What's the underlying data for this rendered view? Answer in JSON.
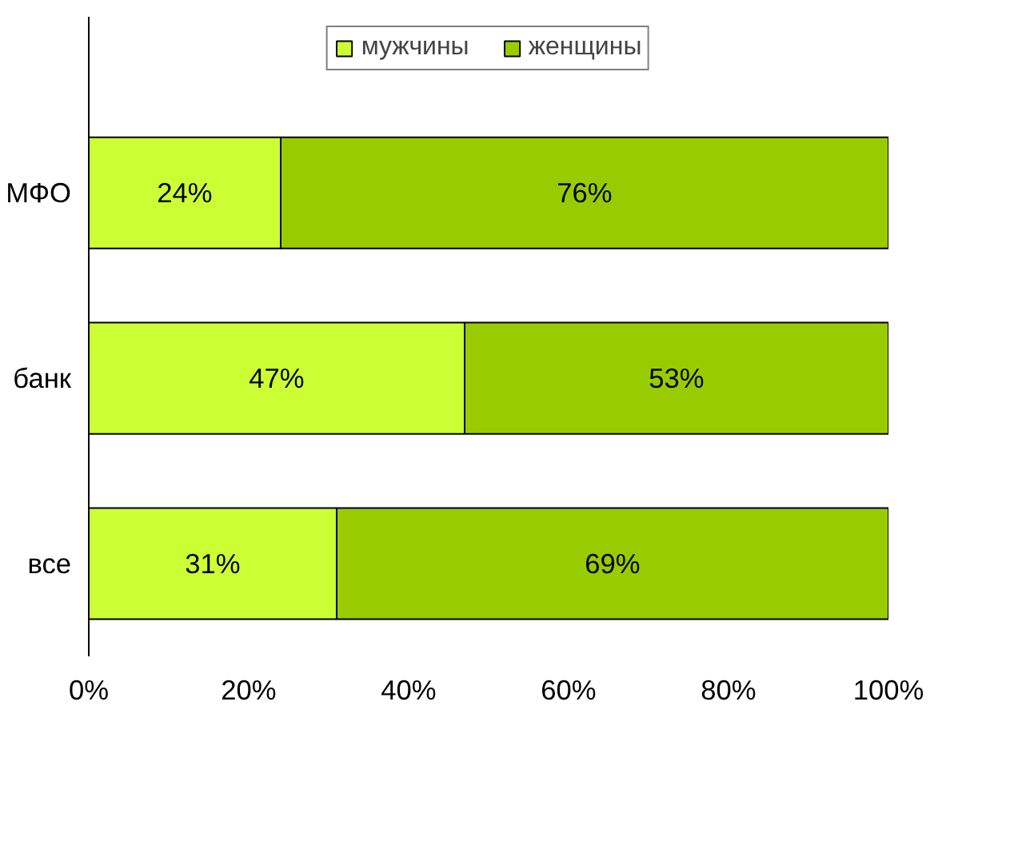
{
  "chart_data": {
    "type": "bar",
    "orientation": "horizontal",
    "stacked": true,
    "categories": [
      "МФО",
      "банк",
      "все"
    ],
    "series": [
      {
        "name": "мужчины",
        "color": "#ccff33",
        "values": [
          24,
          47,
          31
        ],
        "value_labels": [
          "24%",
          "47%",
          "31%"
        ]
      },
      {
        "name": "женщины",
        "color": "#99cc00",
        "values": [
          76,
          53,
          69
        ],
        "value_labels": [
          "76%",
          "53%",
          "69%"
        ]
      }
    ],
    "xlim": [
      0,
      100
    ],
    "xticks": [
      {
        "value": 0,
        "label": "0%"
      },
      {
        "value": 20,
        "label": "20%"
      },
      {
        "value": 40,
        "label": "40%"
      },
      {
        "value": 60,
        "label": "60%"
      },
      {
        "value": 80,
        "label": "80%"
      },
      {
        "value": 100,
        "label": "100%"
      }
    ],
    "legend": "top",
    "grid": false
  }
}
